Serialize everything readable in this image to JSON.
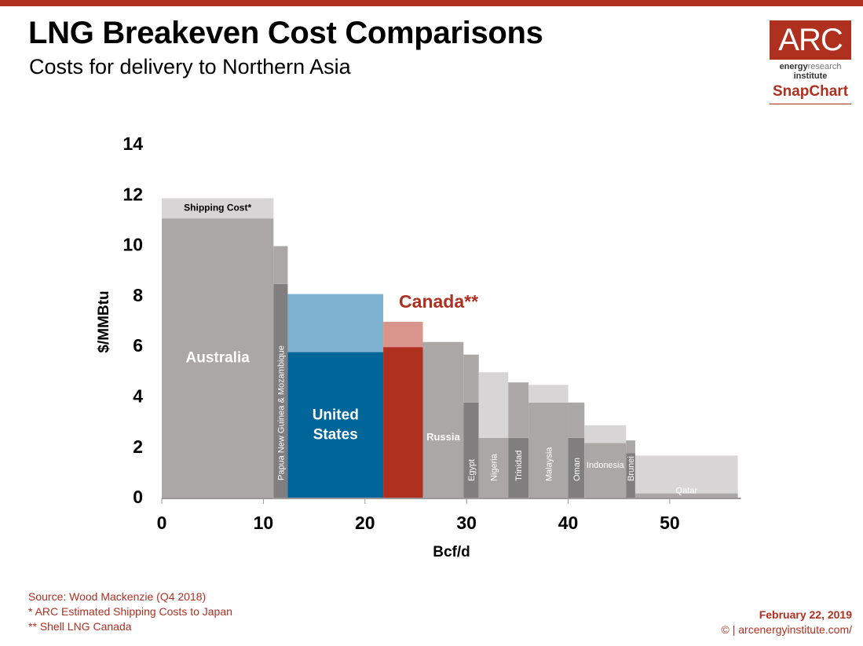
{
  "header": {
    "title": "LNG Breakeven Cost Comparisons",
    "subtitle": "Costs for delivery to Northern Asia"
  },
  "logo": {
    "box_text": "ARC",
    "line1_bold": "energy",
    "line1_light": "research",
    "line2": "institute",
    "line3": "SnapChart"
  },
  "footer": {
    "source": "Source: Wood Mackenzie (Q4 2018)",
    "note1": "* ARC Estimated Shipping Costs to Japan",
    "note2": "** Shell LNG Canada",
    "date": "February 22, 2019",
    "copyright": "© | arcenergyinstitute.com/"
  },
  "colors": {
    "accent": "#b03020",
    "base_gray": "#aba7a7",
    "shipping_gray": "#d7d5d5",
    "dark_gray": "#807e7e",
    "us_blue": "#006699",
    "us_shipping": "#7fb1d0",
    "canada_red": "#b03020",
    "canada_shipping": "#d9948c"
  },
  "chart_data": {
    "type": "bar",
    "variant": "variable-width stacked (cost curve)",
    "xlabel": "Bcf/d",
    "ylabel": "$/MMBtu",
    "xlim": [
      0,
      57
    ],
    "ylim": [
      0,
      14
    ],
    "xticks": [
      0,
      10,
      20,
      30,
      40,
      50
    ],
    "yticks": [
      0,
      2,
      4,
      6,
      8,
      10,
      12,
      14
    ],
    "grid": false,
    "legend": "none",
    "shipping_label": "Shipping Cost*",
    "highlight_label": "Canada**",
    "bars": [
      {
        "name": "Australia",
        "x0": 0,
        "x1": 11,
        "base": 11.1,
        "total": 11.9,
        "label": "Australia",
        "label_style": "large",
        "tone": "gray"
      },
      {
        "name": "Papua New Guinea & Mozambique",
        "x0": 11,
        "x1": 12.4,
        "base": 8.5,
        "total": 10.0,
        "label": "Papua New Guinea & Mozambique",
        "label_style": "vertical",
        "tone": "dark"
      },
      {
        "name": "United States",
        "x0": 12.4,
        "x1": 21.8,
        "base": 5.8,
        "total": 8.1,
        "label": "United States",
        "label_style": "large",
        "tone": "us"
      },
      {
        "name": "Canada",
        "x0": 21.8,
        "x1": 25.7,
        "base": 6.0,
        "total": 7.0,
        "label": "",
        "label_style": "none",
        "tone": "canada"
      },
      {
        "name": "Russia",
        "x0": 25.7,
        "x1": 29.7,
        "base": 6.2,
        "total": 6.2,
        "label": "Russia",
        "label_style": "horizontal",
        "tone": "gray"
      },
      {
        "name": "Egypt",
        "x0": 29.7,
        "x1": 31.2,
        "base": 3.8,
        "total": 5.7,
        "label": "Egypt",
        "label_style": "vertical",
        "tone": "dark"
      },
      {
        "name": "Nigeria",
        "x0": 31.2,
        "x1": 34.1,
        "base": 2.4,
        "total": 5.0,
        "label": "Nigeria",
        "label_style": "vertical",
        "tone": "gray"
      },
      {
        "name": "Trinidad",
        "x0": 34.1,
        "x1": 36.1,
        "base": 2.4,
        "total": 4.6,
        "label": "Trinidad",
        "label_style": "vertical",
        "tone": "dark"
      },
      {
        "name": "Malaysia",
        "x0": 36.1,
        "x1": 40.0,
        "base": 3.8,
        "total": 4.5,
        "label": "Malaysia",
        "label_style": "vertical",
        "tone": "gray"
      },
      {
        "name": "Oman",
        "x0": 40.0,
        "x1": 41.6,
        "base": 2.4,
        "total": 3.8,
        "label": "Oman",
        "label_style": "vertical",
        "tone": "dark"
      },
      {
        "name": "Indonesia",
        "x0": 41.6,
        "x1": 45.7,
        "base": 2.2,
        "total": 2.9,
        "label": "Indonesia",
        "label_style": "horizontal",
        "tone": "gray"
      },
      {
        "name": "Brunei",
        "x0": 45.7,
        "x1": 46.6,
        "base": 1.8,
        "total": 2.3,
        "label": "Brunei",
        "label_style": "vertical",
        "tone": "dark"
      },
      {
        "name": "Qatar",
        "x0": 46.6,
        "x1": 56.7,
        "base": 0.2,
        "total": 1.7,
        "label": "Qatar",
        "label_style": "horizontal",
        "tone": "gray"
      }
    ]
  }
}
